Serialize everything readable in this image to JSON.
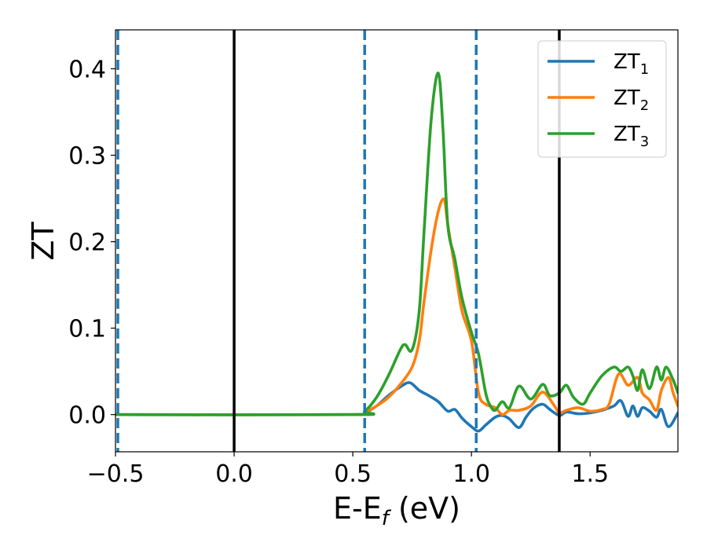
{
  "chart_data": {
    "type": "line",
    "xlabel": "E-E",
    "xlabel_sub": "f",
    "xlabel_unit": " (eV)",
    "ylabel": "ZT",
    "xlim": [
      -0.5,
      1.87
    ],
    "ylim": [
      -0.043,
      0.445
    ],
    "xticks": [
      -0.5,
      0.0,
      0.5,
      1.0,
      1.5
    ],
    "xtick_labels": [
      "−0.5",
      "0.0",
      "0.5",
      "1.0",
      "1.5"
    ],
    "yticks": [
      0.0,
      0.1,
      0.2,
      0.3,
      0.4
    ],
    "ytick_labels": [
      "0.0",
      "0.1",
      "0.2",
      "0.3",
      "0.4"
    ],
    "grid": false,
    "legend_position": "top-right",
    "vlines_solid": [
      0.0,
      1.37
    ],
    "vlines_dashed": [
      -0.49,
      0.55,
      1.02
    ],
    "vline_colors": {
      "solid": "#000000",
      "dashed": "#1f77b4"
    },
    "series": [
      {
        "name": "ZT",
        "sub": "1",
        "color": "#1f77b4",
        "x": [
          -0.5,
          0.5,
          0.55,
          0.6,
          0.65,
          0.7,
          0.74,
          0.78,
          0.82,
          0.86,
          0.9,
          0.93,
          0.96,
          1.0,
          1.03,
          1.06,
          1.1,
          1.13,
          1.16,
          1.2,
          1.23,
          1.26,
          1.3,
          1.33,
          1.37,
          1.4,
          1.45,
          1.5,
          1.55,
          1.6,
          1.63,
          1.66,
          1.68,
          1.7,
          1.72,
          1.75,
          1.78,
          1.8,
          1.83,
          1.87
        ],
        "values": [
          0.0,
          0.0,
          0.002,
          0.01,
          0.022,
          0.032,
          0.037,
          0.028,
          0.022,
          0.015,
          0.004,
          0.006,
          -0.004,
          -0.014,
          -0.019,
          -0.012,
          -0.003,
          -0.001,
          -0.005,
          -0.015,
          -0.003,
          0.007,
          0.012,
          0.006,
          -0.001,
          0.003,
          0.001,
          0.002,
          0.005,
          0.01,
          0.016,
          -0.002,
          0.01,
          -0.002,
          0.008,
          0.004,
          -0.003,
          0.006,
          -0.014,
          0.002
        ]
      },
      {
        "name": "ZT",
        "sub": "2",
        "color": "#ff7f0e",
        "x": [
          -0.5,
          0.5,
          0.55,
          0.6,
          0.65,
          0.7,
          0.75,
          0.78,
          0.8,
          0.83,
          0.86,
          0.885,
          0.9,
          0.93,
          0.96,
          1.0,
          1.03,
          1.06,
          1.1,
          1.13,
          1.16,
          1.2,
          1.25,
          1.3,
          1.35,
          1.37,
          1.4,
          1.45,
          1.5,
          1.55,
          1.58,
          1.62,
          1.66,
          1.7,
          1.72,
          1.75,
          1.78,
          1.8,
          1.83,
          1.85,
          1.87
        ],
        "values": [
          0.0,
          0.0,
          0.003,
          0.01,
          0.02,
          0.035,
          0.055,
          0.085,
          0.13,
          0.19,
          0.235,
          0.249,
          0.22,
          0.17,
          0.12,
          0.085,
          0.025,
          0.012,
          0.008,
          0.0,
          0.005,
          0.005,
          0.01,
          0.026,
          0.01,
          0.002,
          0.005,
          0.008,
          0.004,
          0.006,
          0.012,
          0.047,
          0.034,
          0.043,
          0.025,
          0.017,
          0.005,
          0.028,
          0.043,
          0.025,
          0.01
        ]
      },
      {
        "name": "ZT",
        "sub": "3",
        "color": "#2ca02c",
        "x": [
          -0.5,
          0.5,
          0.55,
          0.6,
          0.65,
          0.7,
          0.72,
          0.75,
          0.78,
          0.8,
          0.83,
          0.86,
          0.88,
          0.9,
          0.93,
          0.96,
          1.0,
          1.03,
          1.06,
          1.08,
          1.1,
          1.13,
          1.16,
          1.2,
          1.25,
          1.3,
          1.33,
          1.37,
          1.4,
          1.43,
          1.47,
          1.5,
          1.55,
          1.6,
          1.63,
          1.66,
          1.68,
          1.7,
          1.72,
          1.75,
          1.78,
          1.8,
          1.82,
          1.85,
          1.87
        ],
        "values": [
          0.0,
          0.0,
          0.004,
          0.02,
          0.045,
          0.075,
          0.081,
          0.075,
          0.12,
          0.21,
          0.34,
          0.395,
          0.33,
          0.22,
          0.18,
          0.135,
          0.095,
          0.07,
          0.025,
          0.01,
          0.005,
          0.015,
          0.008,
          0.033,
          0.018,
          0.035,
          0.022,
          0.025,
          0.034,
          0.02,
          0.012,
          0.025,
          0.045,
          0.055,
          0.05,
          0.055,
          0.045,
          0.028,
          0.052,
          0.03,
          0.055,
          0.04,
          0.055,
          0.04,
          0.025
        ]
      }
    ]
  }
}
